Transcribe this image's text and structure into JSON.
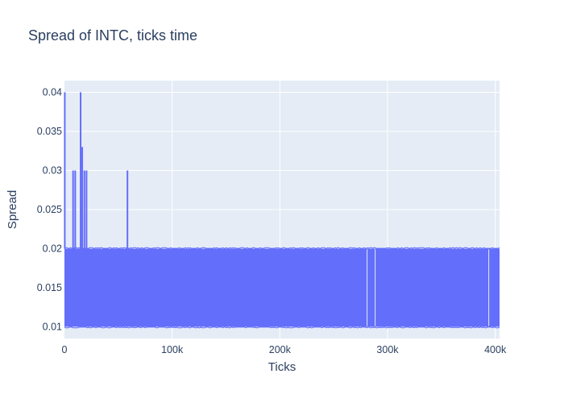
{
  "chart_data": {
    "type": "line",
    "title": "Spread of INTC, ticks time",
    "xlabel": "Ticks",
    "ylabel": "Spread",
    "xlim": [
      0,
      404000
    ],
    "ylim": [
      0.0085,
      0.0415
    ],
    "x_ticks": [
      {
        "value": 0,
        "label": "0"
      },
      {
        "value": 100000,
        "label": "100k"
      },
      {
        "value": 200000,
        "label": "200k"
      },
      {
        "value": 300000,
        "label": "300k"
      },
      {
        "value": 400000,
        "label": "400k"
      }
    ],
    "y_ticks": [
      {
        "value": 0.01,
        "label": "0.01"
      },
      {
        "value": 0.015,
        "label": "0.015"
      },
      {
        "value": 0.02,
        "label": "0.02"
      },
      {
        "value": 0.025,
        "label": "0.025"
      },
      {
        "value": 0.03,
        "label": "0.03"
      },
      {
        "value": 0.035,
        "label": "0.035"
      },
      {
        "value": 0.04,
        "label": "0.04"
      }
    ],
    "grid": true,
    "series": [
      {
        "color": "#636efa",
        "base_range": [
          0.01,
          0.02
        ],
        "base_x_range": [
          0,
          404000
        ],
        "spikes": [
          {
            "x": 300,
            "y": 0.04
          },
          {
            "x": 8000,
            "y": 0.03
          },
          {
            "x": 10000,
            "y": 0.03
          },
          {
            "x": 15000,
            "y": 0.04
          },
          {
            "x": 16500,
            "y": 0.033
          },
          {
            "x": 18500,
            "y": 0.03
          },
          {
            "x": 20500,
            "y": 0.03
          },
          {
            "x": 58500,
            "y": 0.03
          }
        ],
        "gaps": [
          {
            "x": 281000,
            "y_from": 0.0101,
            "y_to": 0.0199
          },
          {
            "x": 288500,
            "y_from": 0.0101,
            "y_to": 0.0199
          },
          {
            "x": 394000,
            "y_from": 0.0101,
            "y_to": 0.0199
          }
        ]
      }
    ]
  }
}
